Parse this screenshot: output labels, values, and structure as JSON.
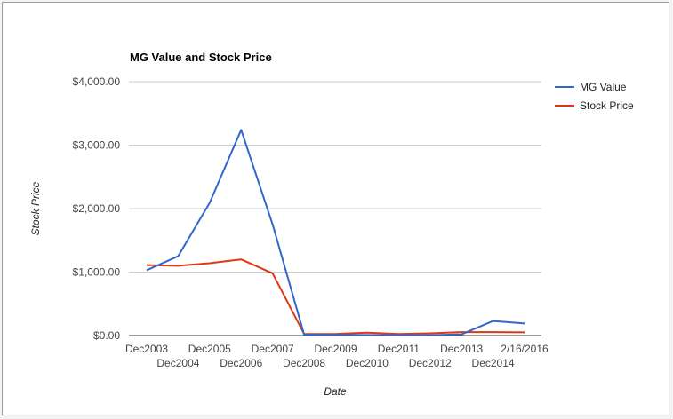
{
  "chart_data": {
    "type": "line",
    "title": "MG Value and Stock Price",
    "xlabel": "Date",
    "ylabel": "Stock Price",
    "ylim": [
      0,
      4000
    ],
    "yticks": [
      "$0.00",
      "$1,000.00",
      "$2,000.00",
      "$3,000.00",
      "$4,000.00"
    ],
    "grid": true,
    "legend_position": "right",
    "categories": [
      "Dec2003",
      "Dec2004",
      "Dec2005",
      "Dec2006",
      "Dec2007",
      "Dec2008",
      "Dec2009",
      "Dec2010",
      "Dec2011",
      "Dec2012",
      "Dec2013",
      "Dec2014",
      "2/16/2016"
    ],
    "series": [
      {
        "name": "MG Value",
        "color": "#3366cc",
        "values": [
          1030,
          1250,
          2090,
          3240,
          1750,
          15,
          10,
          8,
          5,
          5,
          20,
          230,
          190
        ]
      },
      {
        "name": "Stock Price",
        "color": "#dc3912",
        "values": [
          1110,
          1100,
          1140,
          1200,
          980,
          25,
          25,
          45,
          25,
          35,
          55,
          55,
          50
        ]
      }
    ]
  }
}
